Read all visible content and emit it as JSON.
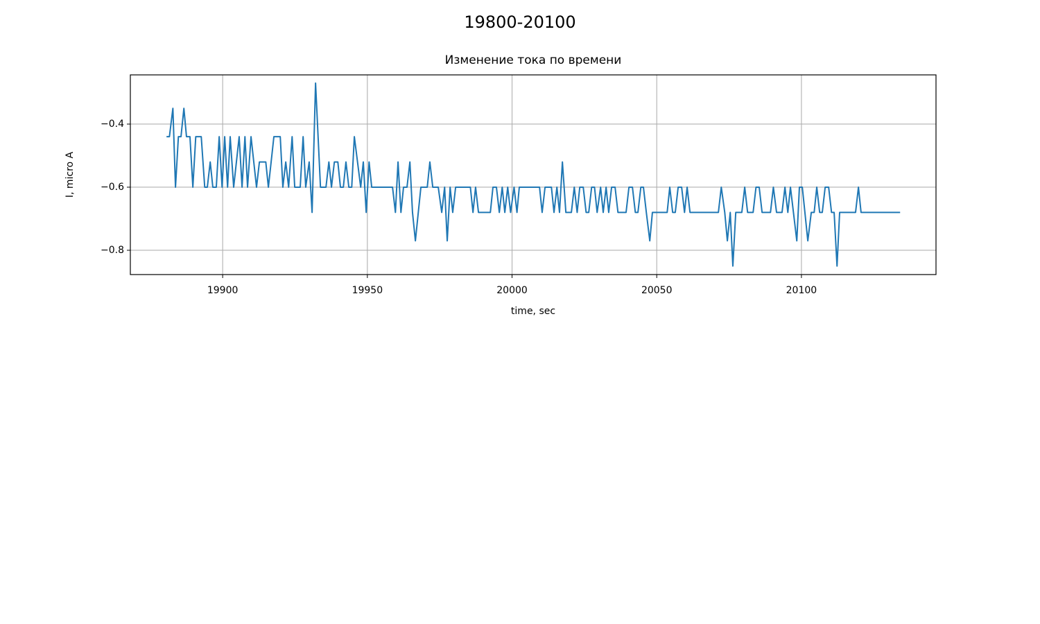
{
  "chart_data": {
    "type": "line",
    "suptitle": "19800-20100",
    "title": "Изменение тока по времени",
    "x_label": "time, sec",
    "y_label": "I, micro A",
    "xlim": [
      19868.1,
      20146.5
    ],
    "ylim": [
      -0.877,
      -0.244
    ],
    "xticks": [
      19900,
      19950,
      20000,
      20050,
      20100
    ],
    "yticks": [
      {
        "value": -0.4,
        "label": "−0.4"
      },
      {
        "value": -0.6,
        "label": "−0.6"
      },
      {
        "value": -0.8,
        "label": "−0.8"
      }
    ],
    "grid": true,
    "x": [
      19880.6,
      19881.6,
      19882.8,
      19883.7,
      19884.7,
      19885.6,
      19886.6,
      19887.5,
      19888.7,
      19889.7,
      19890.7,
      19892.6,
      19893.8,
      19894.7,
      19895.7,
      19896.6,
      19897.8,
      19898.8,
      19899.8,
      19900.7,
      19901.7,
      19902.6,
      19903.8,
      19905.7,
      19906.7,
      19907.7,
      19908.6,
      19909.8,
      19911.7,
      19912.7,
      19914.9,
      19915.8,
      19917.7,
      19919.9,
      19920.8,
      19921.8,
      19922.8,
      19924.0,
      19924.9,
      19926.8,
      19927.8,
      19928.7,
      19929.9,
      19930.9,
      19932.1,
      19933.8,
      19935.7,
      19936.7,
      19937.6,
      19938.6,
      19939.8,
      19940.7,
      19941.7,
      19942.6,
      19943.6,
      19944.6,
      19945.5,
      19947.7,
      19948.6,
      19949.6,
      19950.6,
      19951.5,
      19958.7,
      19959.7,
      19960.6,
      19961.6,
      19962.5,
      19963.7,
      19964.7,
      19965.6,
      19966.6,
      19967.6,
      19968.5,
      19970.7,
      19971.6,
      19972.6,
      19974.5,
      19975.7,
      19976.7,
      19977.6,
      19978.6,
      19979.5,
      19980.5,
      19985.6,
      19986.5,
      19987.4,
      19988.4,
      19992.5,
      19993.4,
      19994.6,
      19995.6,
      19996.6,
      19997.5,
      19998.5,
      19999.5,
      20000.7,
      20001.7,
      20002.5,
      20009.5,
      20010.4,
      20011.4,
      20013.6,
      20014.5,
      20015.5,
      20016.4,
      20017.4,
      20018.6,
      20020.5,
      20021.5,
      20022.5,
      20023.4,
      20024.6,
      20025.6,
      20026.5,
      20027.5,
      20028.5,
      20029.4,
      20030.6,
      20031.5,
      20032.5,
      20033.4,
      20034.4,
      20035.6,
      20036.6,
      20039.4,
      20040.4,
      20041.6,
      20042.6,
      20043.5,
      20044.5,
      20045.4,
      20046.4,
      20047.6,
      20048.5,
      20053.6,
      20054.5,
      20055.5,
      20056.4,
      20057.4,
      20058.6,
      20059.6,
      20060.5,
      20061.5,
      20071.3,
      20072.3,
      20073.5,
      20074.4,
      20075.4,
      20076.3,
      20077.3,
      20079.4,
      20080.4,
      20081.4,
      20083.3,
      20084.3,
      20085.4,
      20086.4,
      20089.3,
      20090.3,
      20091.4,
      20093.3,
      20094.3,
      20095.3,
      20096.2,
      20098.4,
      20099.3,
      20100.3,
      20101.2,
      20102.2,
      20103.4,
      20104.4,
      20105.3,
      20106.3,
      20107.2,
      20108.2,
      20109.4,
      20110.4,
      20111.3,
      20112.3,
      20113.2,
      20118.7,
      20119.7,
      20120.6,
      20134.1
    ],
    "series": [
      {
        "name": "I",
        "color": "#1f77b4",
        "values": [
          -0.44,
          -0.44,
          -0.35,
          -0.6,
          -0.44,
          -0.44,
          -0.35,
          -0.44,
          -0.44,
          -0.6,
          -0.44,
          -0.44,
          -0.6,
          -0.6,
          -0.52,
          -0.6,
          -0.6,
          -0.44,
          -0.6,
          -0.44,
          -0.6,
          -0.44,
          -0.6,
          -0.44,
          -0.6,
          -0.44,
          -0.6,
          -0.44,
          -0.6,
          -0.52,
          -0.52,
          -0.6,
          -0.44,
          -0.44,
          -0.6,
          -0.52,
          -0.6,
          -0.44,
          -0.6,
          -0.6,
          -0.44,
          -0.6,
          -0.52,
          -0.68,
          -0.27,
          -0.6,
          -0.6,
          -0.52,
          -0.6,
          -0.52,
          -0.52,
          -0.6,
          -0.6,
          -0.52,
          -0.6,
          -0.6,
          -0.44,
          -0.6,
          -0.52,
          -0.68,
          -0.52,
          -0.6,
          -0.6,
          -0.68,
          -0.52,
          -0.68,
          -0.6,
          -0.6,
          -0.52,
          -0.68,
          -0.77,
          -0.68,
          -0.6,
          -0.6,
          -0.52,
          -0.6,
          -0.6,
          -0.68,
          -0.6,
          -0.77,
          -0.6,
          -0.68,
          -0.6,
          -0.6,
          -0.68,
          -0.6,
          -0.68,
          -0.68,
          -0.6,
          -0.6,
          -0.68,
          -0.6,
          -0.68,
          -0.6,
          -0.68,
          -0.6,
          -0.68,
          -0.6,
          -0.6,
          -0.68,
          -0.6,
          -0.6,
          -0.68,
          -0.6,
          -0.68,
          -0.52,
          -0.68,
          -0.68,
          -0.6,
          -0.68,
          -0.6,
          -0.6,
          -0.68,
          -0.68,
          -0.6,
          -0.6,
          -0.68,
          -0.6,
          -0.68,
          -0.6,
          -0.68,
          -0.6,
          -0.6,
          -0.68,
          -0.68,
          -0.6,
          -0.6,
          -0.68,
          -0.68,
          -0.6,
          -0.6,
          -0.68,
          -0.77,
          -0.68,
          -0.68,
          -0.6,
          -0.68,
          -0.68,
          -0.6,
          -0.6,
          -0.68,
          -0.6,
          -0.68,
          -0.68,
          -0.6,
          -0.68,
          -0.77,
          -0.68,
          -0.85,
          -0.68,
          -0.68,
          -0.6,
          -0.68,
          -0.68,
          -0.6,
          -0.6,
          -0.68,
          -0.68,
          -0.6,
          -0.68,
          -0.68,
          -0.6,
          -0.68,
          -0.6,
          -0.77,
          -0.6,
          -0.6,
          -0.68,
          -0.77,
          -0.68,
          -0.68,
          -0.6,
          -0.68,
          -0.68,
          -0.6,
          -0.6,
          -0.68,
          -0.68,
          -0.85,
          -0.68,
          -0.68,
          -0.6,
          -0.68,
          -0.68
        ]
      }
    ]
  }
}
